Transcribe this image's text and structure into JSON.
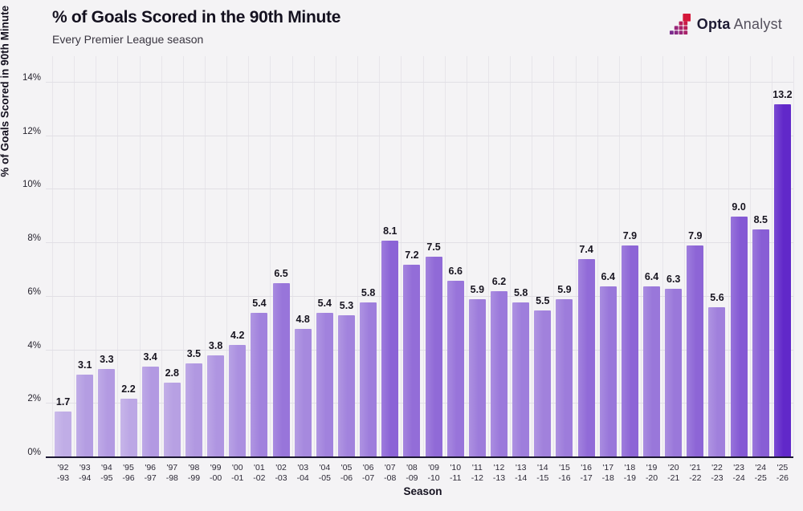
{
  "header": {
    "title": "% of Goals Scored in the 90th Minute",
    "subtitle": "Every Premier League season",
    "logo": {
      "brand_bold": "Opta",
      "brand_light": "Analyst"
    }
  },
  "chart_data": {
    "type": "bar",
    "title": "% of Goals Scored in the 90th Minute",
    "subtitle": "Every Premier League season",
    "xlabel": "Season",
    "ylabel": "% of Goals Scored in 90th Minute",
    "categories": [
      "'92-93",
      "'93-94",
      "'94-95",
      "'95-96",
      "'96-97",
      "'97-98",
      "'98-99",
      "'99-00",
      "'00-01",
      "'01-02",
      "'02-03",
      "'03-04",
      "'04-05",
      "'05-06",
      "'06-07",
      "'07-08",
      "'08-09",
      "'09-10",
      "'10-11",
      "'11-12",
      "'12-13",
      "'13-14",
      "'14-15",
      "'15-16",
      "'16-17",
      "'17-18",
      "'18-19",
      "'19-20",
      "'20-21",
      "'21-22",
      "'22-23",
      "'23-24",
      "'24-25",
      "'25-26"
    ],
    "values": [
      1.7,
      3.1,
      3.3,
      2.2,
      3.4,
      2.8,
      3.5,
      3.8,
      4.2,
      5.4,
      6.5,
      4.8,
      5.4,
      5.3,
      5.8,
      8.1,
      7.2,
      7.5,
      6.6,
      5.9,
      6.2,
      5.8,
      5.5,
      5.9,
      7.4,
      6.4,
      7.9,
      6.4,
      6.3,
      7.9,
      5.6,
      9.0,
      8.5,
      13.2
    ],
    "value_labels": [
      "1.7",
      "3.1",
      "3.3",
      "2.2",
      "3.4",
      "2.8",
      "3.5",
      "3.8",
      "4.2",
      "5.4",
      "6.5",
      "4.8",
      "5.4",
      "5.3",
      "5.8",
      "8.1",
      "7.2",
      "7.5",
      "6.6",
      "5.9",
      "6.2",
      "5.8",
      "5.5",
      "5.9",
      "7.4",
      "6.4",
      "7.9",
      "6.4",
      "6.3",
      "7.9",
      "5.6",
      "9.0",
      "8.5",
      "13.2"
    ],
    "ylim": [
      0,
      14
    ],
    "ytick_values": [
      0,
      2,
      4,
      6,
      8,
      10,
      12,
      14
    ],
    "ytick_labels": [
      "0%",
      "2%",
      "4%",
      "6%",
      "8%",
      "10%",
      "12%",
      "14%"
    ],
    "grid": true,
    "legend": "none",
    "bar_color_scale": {
      "min_color": "#c0ade6",
      "max_color": "#6128c9",
      "domain": [
        1.7,
        13.2
      ]
    },
    "colors": {
      "background": "#f4f3f5",
      "gridline": "#e1dfe5",
      "axis_line": "#1c1733",
      "text": "#16131f"
    }
  },
  "logo_icon": {
    "name": "opta-staircase-icon",
    "square_colors": [
      "#7b2d8e",
      "#8a2a84",
      "#99267a",
      "#992679",
      "#a8226b",
      "#b71e5b",
      "#a82269",
      "#b81e58",
      "#c81a46",
      "#d5173a"
    ]
  }
}
